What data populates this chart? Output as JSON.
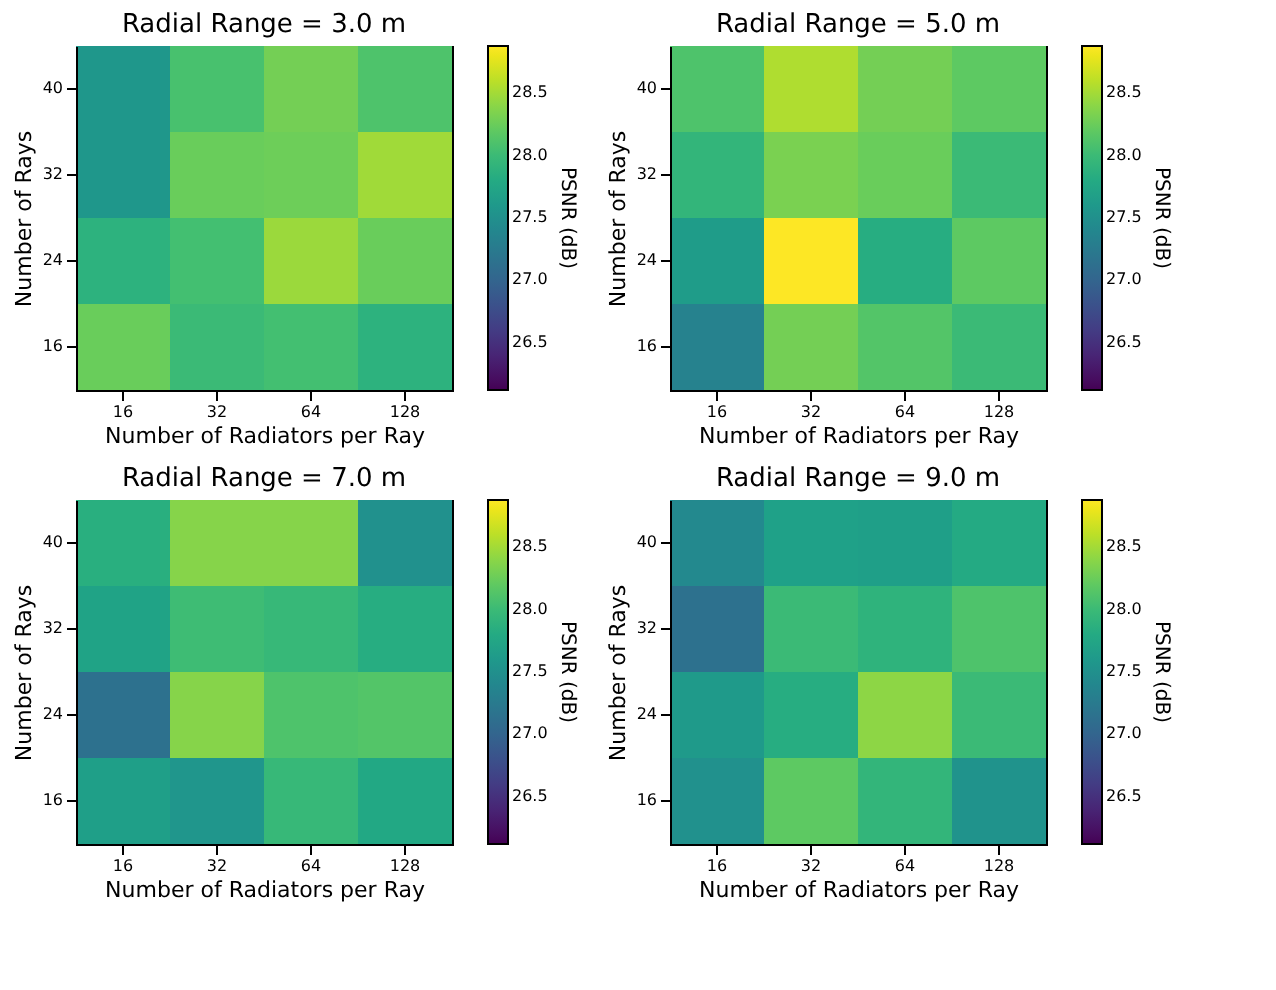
{
  "chart_data": [
    {
      "type": "heatmap",
      "title": "Radial Range = 3.0 m",
      "xlabel": "Number of Radiators per Ray",
      "ylabel": "Number of Rays",
      "clabel": "PSNR (dB)",
      "categories": [
        "16",
        "32",
        "64",
        "128"
      ],
      "y_categories": [
        "40",
        "32",
        "24",
        "16"
      ],
      "cells": [
        [
          27.58,
          28.08,
          28.3,
          28.11
        ],
        [
          27.58,
          28.25,
          28.27,
          28.49
        ],
        [
          27.89,
          28.05,
          28.47,
          28.25
        ],
        [
          28.25,
          28.0,
          28.05,
          27.89
        ]
      ],
      "clim": [
        26.12,
        28.88
      ],
      "cticks": [
        26.5,
        {
          "value": 27,
          "label": "27.0"
        },
        27.5,
        {
          "value": 28,
          "label": "28.0"
        },
        28.5
      ]
    },
    {
      "type": "heatmap",
      "title": "Radial Range = 5.0 m",
      "xlabel": "Number of Radiators per Ray",
      "ylabel": "Number of Rays",
      "clabel": "PSNR (dB)",
      "categories": [
        "16",
        "32",
        "64",
        "128"
      ],
      "y_categories": [
        "40",
        "32",
        "24",
        "16"
      ],
      "cells": [
        [
          28.11,
          28.55,
          28.3,
          28.19
        ],
        [
          27.94,
          28.33,
          28.25,
          28.0
        ],
        [
          27.64,
          28.88,
          27.83,
          28.19
        ],
        [
          27.33,
          28.3,
          28.14,
          28.0
        ]
      ],
      "clim": [
        26.12,
        28.88
      ],
      "cticks": [
        26.5,
        {
          "value": 27,
          "label": "27.0"
        },
        27.5,
        {
          "value": 28,
          "label": "28.0"
        },
        28.5
      ]
    },
    {
      "type": "heatmap",
      "title": "Radial Range = 7.0 m",
      "xlabel": "Number of Radiators per Ray",
      "ylabel": "Number of Rays",
      "clabel": "PSNR (dB)",
      "categories": [
        "16",
        "32",
        "64",
        "128"
      ],
      "y_categories": [
        "40",
        "32",
        "24",
        "16"
      ],
      "cells": [
        [
          27.86,
          28.38,
          28.38,
          27.5
        ],
        [
          27.72,
          28.02,
          27.97,
          27.83
        ],
        [
          27.14,
          28.38,
          28.11,
          28.14
        ],
        [
          27.67,
          27.56,
          27.97,
          27.78
        ]
      ],
      "clim": [
        26.12,
        28.88
      ],
      "cticks": [
        26.5,
        {
          "value": 27,
          "label": "27.0"
        },
        27.5,
        {
          "value": 28,
          "label": "28.0"
        },
        28.5
      ]
    },
    {
      "type": "heatmap",
      "title": "Radial Range = 9.0 m",
      "xlabel": "Number of Radiators per Ray",
      "ylabel": "Number of Rays",
      "clabel": "PSNR (dB)",
      "categories": [
        "16",
        "32",
        "64",
        "128"
      ],
      "y_categories": [
        "40",
        "32",
        "24",
        "16"
      ],
      "cells": [
        [
          27.42,
          27.69,
          27.67,
          27.8
        ],
        [
          27.14,
          28.0,
          27.91,
          28.11
        ],
        [
          27.61,
          27.83,
          28.41,
          28.0
        ],
        [
          27.5,
          28.19,
          27.94,
          27.53
        ]
      ],
      "clim": [
        26.12,
        28.88
      ],
      "cticks": [
        26.5,
        {
          "value": 27,
          "label": "27.0"
        },
        27.5,
        {
          "value": 28,
          "label": "28.0"
        },
        28.5
      ]
    }
  ]
}
